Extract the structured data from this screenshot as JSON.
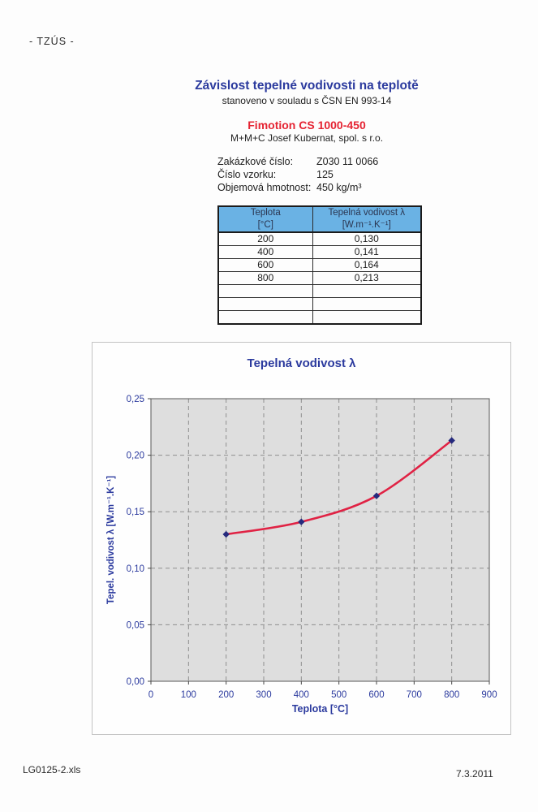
{
  "document": {
    "stamp": "- TZÚS -",
    "title": "Závislost tepelné vodivosti na teplotě",
    "subtitle": "stanoveno v souladu s ČSN EN 993-14",
    "product_name": "Fimotion CS 1000-450",
    "company": "M+M+C Josef Kubernat, spol. s r.o.",
    "footer_file": "LG0125-2.xls",
    "footer_date": "7.3.2011"
  },
  "fields": [
    {
      "label": "Zakázkové číslo:",
      "value": "Z030 11 0066"
    },
    {
      "label": "Číslo vzorku:",
      "value": "125"
    },
    {
      "label": "Objemová hmotnost:",
      "value": "450 kg/m³"
    }
  ],
  "table": {
    "headers": [
      {
        "title": "Teplota",
        "unit": "[°C]"
      },
      {
        "title": "Tepelná vodivost λ",
        "unit": "[W.m⁻¹.K⁻¹]"
      }
    ],
    "rows": [
      [
        "200",
        "0,130"
      ],
      [
        "400",
        "0,141"
      ],
      [
        "600",
        "0,164"
      ],
      [
        "800",
        "0,213"
      ]
    ],
    "empty_row_count": 3,
    "header_bg": "#6ab2e4"
  },
  "chart_data": {
    "type": "line",
    "title": "Tepelná vodivost  λ",
    "xlabel": "Teplota [°C]",
    "ylabel": "Tepel. vodivost λ [W.m⁻¹.K⁻¹]",
    "x": [
      200,
      400,
      600,
      800
    ],
    "y": [
      0.13,
      0.141,
      0.164,
      0.213
    ],
    "xlim": [
      0,
      900
    ],
    "ylim": [
      0,
      0.25
    ],
    "xticks": [
      0,
      100,
      200,
      300,
      400,
      500,
      600,
      700,
      800,
      900
    ],
    "yticks": [
      0,
      0.05,
      0.1,
      0.15,
      0.2,
      0.25
    ],
    "ytick_labels": [
      "0,00",
      "0,05",
      "0,10",
      "0,15",
      "0,20",
      "0,25"
    ],
    "grid": true,
    "legend_position": "none",
    "line_color": "#e02244",
    "marker": "diamond",
    "marker_color": "#252a7d",
    "plot_bg": "#dedede",
    "grid_color": "#8f8f8f",
    "axis_text_color": "#2b3a9e"
  },
  "colors": {
    "title_blue": "#2b3a9e",
    "product_red": "#e52433"
  }
}
